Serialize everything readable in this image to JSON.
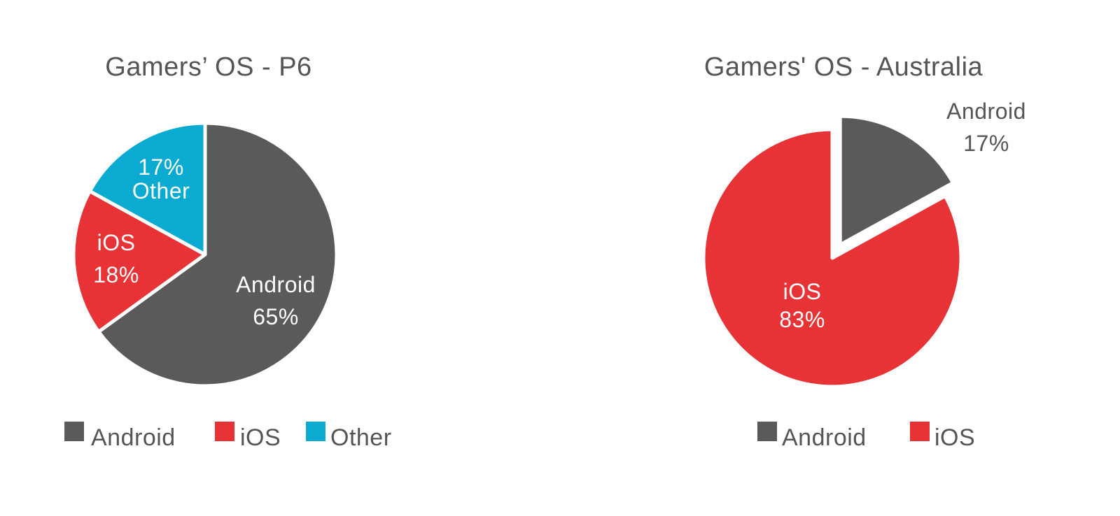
{
  "colors": {
    "Android": "#5a5a5a",
    "iOS": "#e73236",
    "Other": "#0aaad1",
    "label_dark": "#555555"
  },
  "chart_data": [
    {
      "type": "pie",
      "title": "Gamers’ OS - P6",
      "slices": [
        {
          "name": "Android",
          "value": 65,
          "label_lines": [
            "Android",
            "65%"
          ]
        },
        {
          "name": "iOS",
          "value": 18,
          "label_lines": [
            "iOS",
            "18%"
          ]
        },
        {
          "name": "Other",
          "value": 17,
          "label_lines": [
            "17%",
            "Other"
          ]
        }
      ],
      "legend": [
        "Android",
        "iOS",
        "Other"
      ],
      "legend_position": "bottom"
    },
    {
      "type": "pie",
      "title": "Gamers' OS - Australia",
      "slices": [
        {
          "name": "Android",
          "value": 17,
          "label_lines": [
            "Android",
            "17%"
          ],
          "exploded": true
        },
        {
          "name": "iOS",
          "value": 83,
          "label_lines": [
            "iOS",
            "83%"
          ]
        }
      ],
      "legend": [
        "Android",
        "iOS"
      ],
      "legend_position": "bottom"
    }
  ]
}
